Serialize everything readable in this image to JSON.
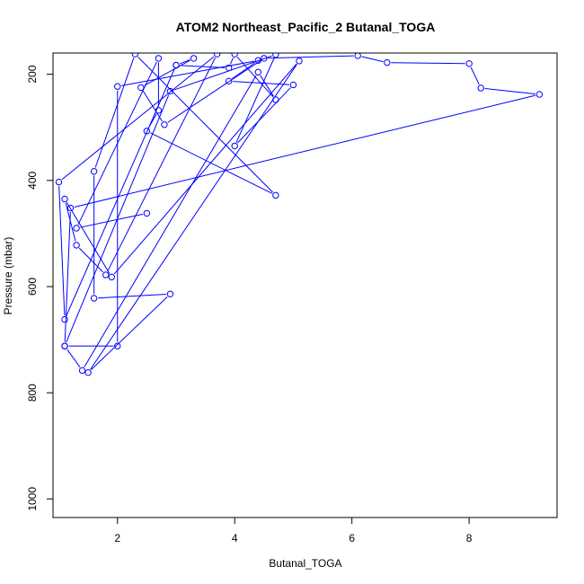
{
  "chart_data": {
    "type": "line",
    "title": "ATOM2 Northeast_Pacific_2 Butanal_TOGA",
    "xlabel": "Butanal_TOGA",
    "ylabel": "Pressure (mbar)",
    "xlim": [
      0.9,
      9.5
    ],
    "ylim": [
      1035,
      160
    ],
    "y_reversed": true,
    "x_ticks": [
      2,
      4,
      6,
      8
    ],
    "y_ticks": [
      200,
      400,
      600,
      800,
      1000
    ],
    "grid": false,
    "series": [
      {
        "marker": "open-circle",
        "color": "#0000ff",
        "points": [
          [
            2.5,
            462
          ],
          [
            1.3,
            490
          ],
          [
            2.7,
            170
          ],
          [
            2.7,
            268
          ],
          [
            2.5,
            307
          ],
          [
            4.7,
            428
          ],
          [
            2.3,
            162
          ],
          [
            1.6,
            383
          ],
          [
            1.6,
            622
          ],
          [
            2.9,
            614
          ],
          [
            1.5,
            762
          ],
          [
            5.1,
            175
          ],
          [
            1.9,
            582
          ],
          [
            1.1,
            435
          ],
          [
            1.3,
            522
          ],
          [
            1.8,
            578
          ],
          [
            3.7,
            162
          ],
          [
            1.0,
            403
          ],
          [
            1.1,
            662
          ],
          [
            3.0,
            183
          ],
          [
            3.3,
            170
          ],
          [
            2.4,
            225
          ],
          [
            2.8,
            295
          ],
          [
            4.5,
            170
          ],
          [
            6.1,
            165
          ],
          [
            6.6,
            178
          ],
          [
            8.0,
            180
          ],
          [
            8.2,
            226
          ],
          [
            9.2,
            238
          ],
          [
            1.2,
            452
          ],
          [
            1.1,
            712
          ],
          [
            2.0,
            712
          ],
          [
            2.0,
            223
          ],
          [
            4.4,
            174
          ],
          [
            3.9,
            213
          ],
          [
            5.0,
            220
          ],
          [
            4.0,
            335
          ],
          [
            4.7,
            163
          ],
          [
            2.9,
            232
          ],
          [
            1.1,
            712
          ],
          [
            1.4,
            758
          ],
          [
            4.4,
            196
          ],
          [
            4.7,
            248
          ],
          [
            4.0,
            162
          ],
          [
            3.9,
            188
          ],
          [
            3.0,
            183
          ]
        ]
      }
    ]
  }
}
